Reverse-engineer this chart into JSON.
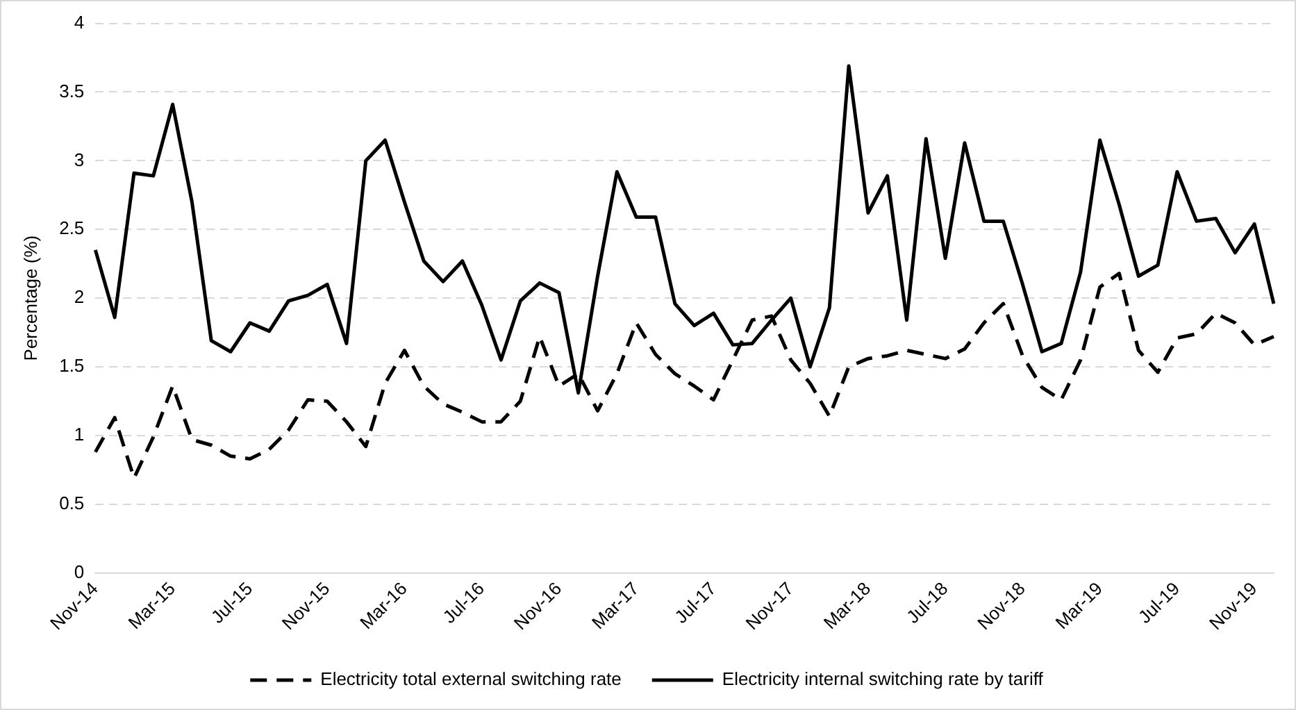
{
  "chart_data": {
    "type": "line",
    "ylabel": "Percentage (%)",
    "categories": [
      "Nov-14",
      null,
      null,
      null,
      "Mar-15",
      null,
      null,
      null,
      "Jul-15",
      null,
      null,
      null,
      "Nov-15",
      null,
      null,
      null,
      "Mar-16",
      null,
      null,
      null,
      "Jul-16",
      null,
      null,
      null,
      "Nov-16",
      null,
      null,
      null,
      "Mar-17",
      null,
      null,
      null,
      "Jul-17",
      null,
      null,
      null,
      "Nov-17",
      null,
      null,
      null,
      "Mar-18",
      null,
      null,
      null,
      "Jul-18",
      null,
      null,
      null,
      "Nov-18",
      null,
      null,
      null,
      "Mar-19",
      null,
      null,
      null,
      "Jul-19",
      null,
      null,
      null,
      "Nov-19",
      null
    ],
    "series": [
      {
        "name": "Electricity total external switching rate",
        "color": "#000000",
        "line_style": "dashed",
        "values": [
          0.88,
          1.13,
          0.69,
          0.99,
          1.36,
          0.97,
          0.93,
          0.85,
          0.83,
          0.9,
          1.04,
          1.26,
          1.25,
          1.1,
          0.92,
          1.38,
          1.62,
          1.36,
          1.23,
          1.17,
          1.1,
          1.1,
          1.25,
          1.72,
          1.36,
          1.45,
          1.18,
          1.45,
          1.82,
          1.59,
          1.45,
          1.36,
          1.26,
          1.55,
          1.84,
          1.87,
          1.55,
          1.38,
          1.14,
          1.5,
          1.56,
          1.58,
          1.62,
          1.59,
          1.56,
          1.63,
          1.82,
          1.96,
          1.58,
          1.35,
          1.26,
          1.55,
          2.08,
          2.18,
          1.62,
          1.46,
          1.71,
          1.74,
          1.89,
          1.82,
          1.66,
          1.72
        ]
      },
      {
        "name": "Electricity internal switching rate by tariff",
        "color": "#000000",
        "line_style": "solid",
        "values": [
          2.35,
          1.86,
          2.91,
          2.89,
          3.41,
          2.7,
          1.69,
          1.61,
          1.82,
          1.76,
          1.98,
          2.02,
          2.1,
          1.67,
          3.0,
          3.15,
          2.7,
          2.27,
          2.12,
          2.27,
          1.95,
          1.55,
          1.98,
          2.11,
          2.04,
          1.31,
          2.16,
          2.92,
          2.59,
          2.59,
          1.96,
          1.8,
          1.89,
          1.66,
          1.67,
          1.84,
          2.0,
          1.5,
          1.93,
          3.69,
          2.62,
          2.89,
          1.84,
          3.16,
          2.29,
          3.13,
          2.56,
          2.56,
          2.1,
          1.61,
          1.67,
          2.19,
          3.15,
          2.68,
          2.16,
          2.24,
          2.92,
          2.56,
          2.58,
          2.33,
          2.54,
          1.96
        ]
      }
    ],
    "ylim": [
      0,
      4
    ],
    "yticks": [
      0,
      0.5,
      1,
      1.5,
      2,
      2.5,
      3,
      3.5,
      4
    ],
    "grid": "y",
    "legend": "bottom",
    "marker": "none"
  }
}
